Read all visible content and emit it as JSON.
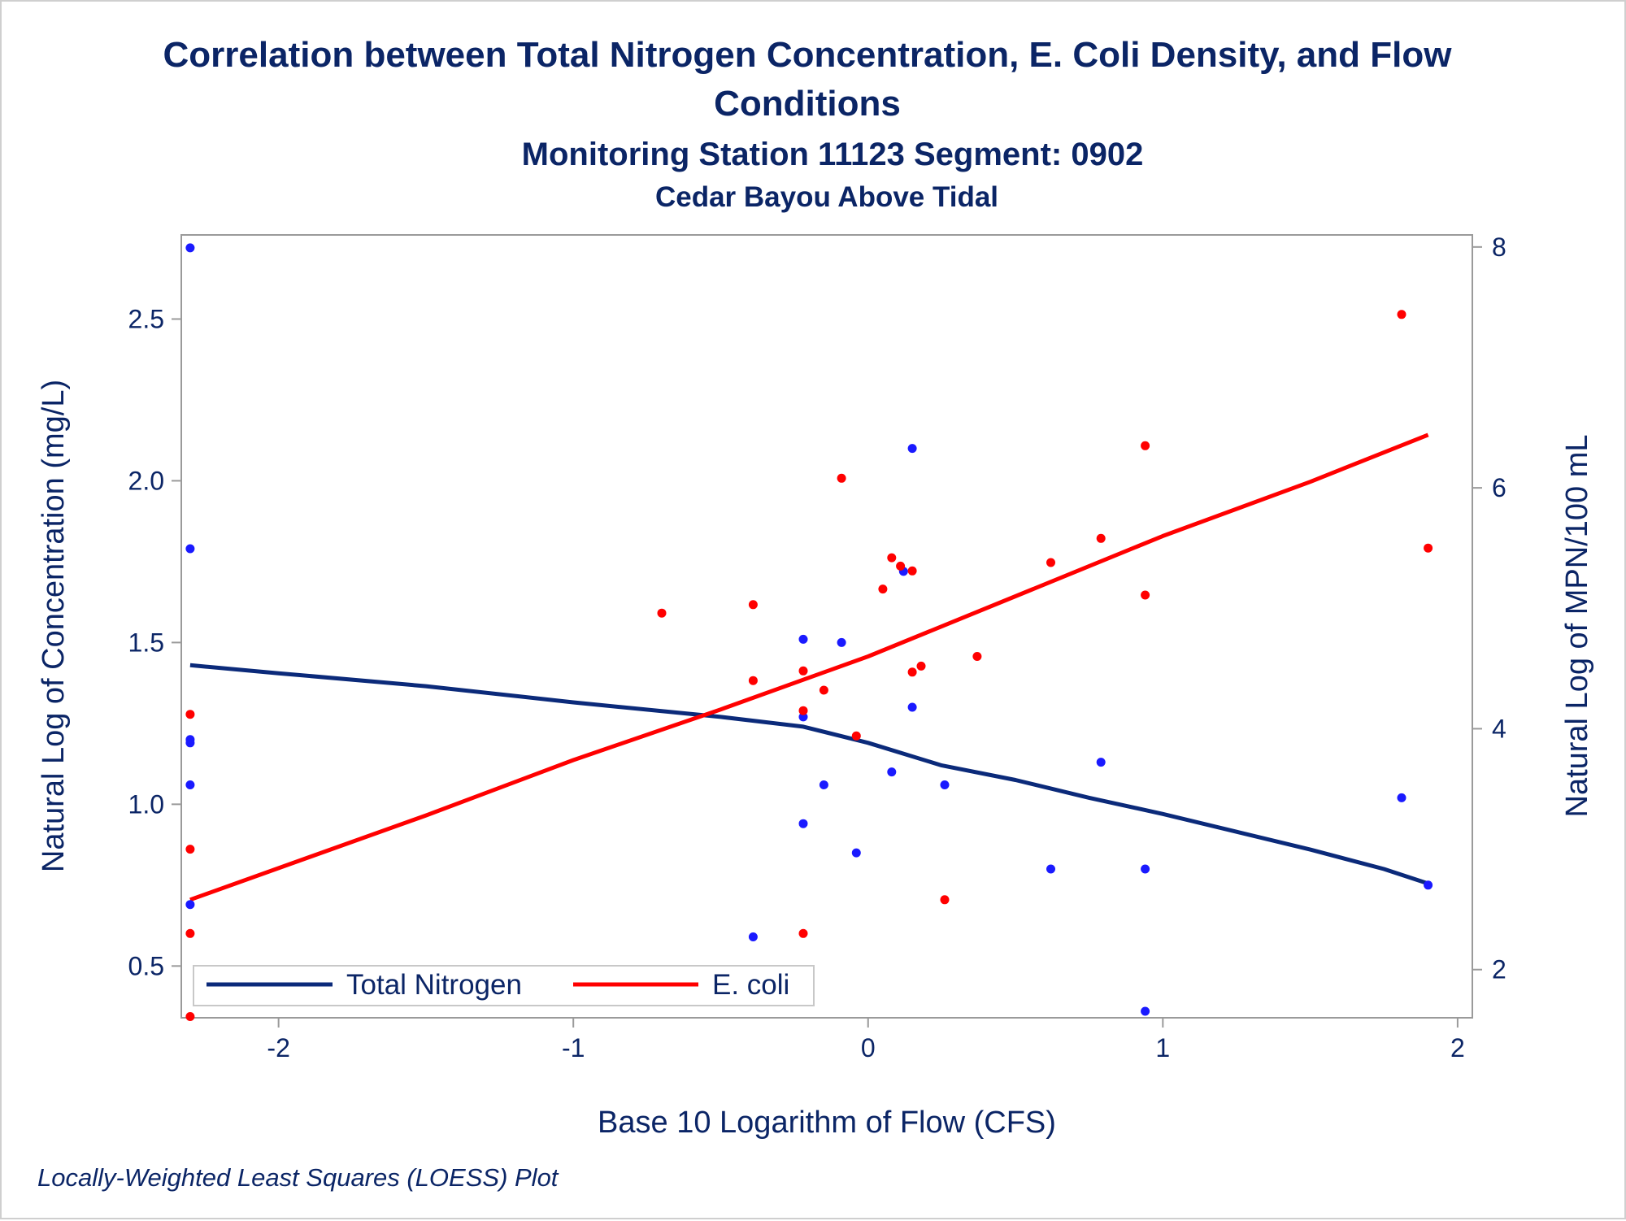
{
  "title": {
    "line1": "Correlation between Total Nitrogen Concentration, E. Coli Density, and Flow",
    "line2": "Conditions",
    "subtitle1": "Monitoring Station 11123 Segment: 0902",
    "subtitle2": "Cedar Bayou Above Tidal"
  },
  "footnote": "Locally-Weighted Least Squares (LOESS) Plot",
  "chart_data": {
    "type": "scatter",
    "xlabel": "Base 10 Logarithm of Flow (CFS)",
    "ylabel": "Natural Log of Concentration (mg/L)",
    "y2label": "Natural Log of MPN/100 mL",
    "xlim": [
      -2.33,
      2.05
    ],
    "ylim": [
      0.34,
      2.76
    ],
    "y2lim": [
      1.6,
      8.1
    ],
    "xticks": [
      "-2",
      "-1",
      "0",
      "1",
      "2"
    ],
    "yticks": [
      "0.5",
      "1.0",
      "1.5",
      "2.0",
      "2.5"
    ],
    "y2ticks": [
      "2",
      "4",
      "6",
      "8"
    ],
    "legend_position": "bottom-left",
    "colors": {
      "nitrogen": "#0b2a7a",
      "ecoli": "#ff0000",
      "text": "#0b2566"
    },
    "series": [
      {
        "name": "Total Nitrogen",
        "axis": "left",
        "color": "#1a1aff",
        "points": [
          [
            -2.3,
            2.72
          ],
          [
            -2.3,
            1.79
          ],
          [
            -2.3,
            1.2
          ],
          [
            -2.3,
            1.19
          ],
          [
            -2.3,
            1.06
          ],
          [
            -2.3,
            0.69
          ],
          [
            -0.39,
            0.59
          ],
          [
            -0.22,
            1.51
          ],
          [
            -0.22,
            1.27
          ],
          [
            -0.22,
            0.94
          ],
          [
            -0.15,
            1.06
          ],
          [
            -0.09,
            1.5
          ],
          [
            -0.04,
            0.85
          ],
          [
            0.08,
            1.1
          ],
          [
            0.12,
            1.72
          ],
          [
            0.15,
            2.1
          ],
          [
            0.15,
            1.3
          ],
          [
            0.26,
            1.06
          ],
          [
            0.62,
            0.8
          ],
          [
            0.79,
            1.13
          ],
          [
            0.94,
            0.8
          ],
          [
            0.94,
            0.36
          ],
          [
            1.81,
            1.02
          ],
          [
            1.9,
            0.75
          ]
        ],
        "fit": [
          [
            -2.3,
            1.43
          ],
          [
            -2.0,
            1.405
          ],
          [
            -1.5,
            1.365
          ],
          [
            -1.0,
            1.315
          ],
          [
            -0.5,
            1.27
          ],
          [
            -0.22,
            1.24
          ],
          [
            0.0,
            1.19
          ],
          [
            0.25,
            1.12
          ],
          [
            0.5,
            1.075
          ],
          [
            0.75,
            1.02
          ],
          [
            1.0,
            0.97
          ],
          [
            1.25,
            0.915
          ],
          [
            1.5,
            0.86
          ],
          [
            1.75,
            0.8
          ],
          [
            1.9,
            0.755
          ]
        ]
      },
      {
        "name": "E. coli",
        "axis": "right",
        "color": "#ff0000",
        "points": [
          [
            -2.3,
            4.12
          ],
          [
            -2.3,
            3.0
          ],
          [
            -2.3,
            2.3
          ],
          [
            -2.3,
            1.61
          ],
          [
            -0.7,
            4.96
          ],
          [
            -0.39,
            5.03
          ],
          [
            -0.39,
            4.4
          ],
          [
            -0.22,
            4.48
          ],
          [
            -0.22,
            4.15
          ],
          [
            -0.22,
            2.3
          ],
          [
            -0.15,
            4.32
          ],
          [
            -0.09,
            6.08
          ],
          [
            -0.04,
            3.94
          ],
          [
            0.05,
            5.16
          ],
          [
            0.08,
            5.42
          ],
          [
            0.11,
            5.35
          ],
          [
            0.15,
            5.31
          ],
          [
            0.15,
            4.47
          ],
          [
            0.18,
            4.52
          ],
          [
            0.26,
            2.58
          ],
          [
            0.37,
            4.6
          ],
          [
            0.62,
            5.38
          ],
          [
            0.79,
            5.58
          ],
          [
            0.94,
            6.35
          ],
          [
            0.94,
            5.11
          ],
          [
            1.81,
            7.44
          ],
          [
            1.9,
            5.5
          ]
        ],
        "fit": [
          [
            -2.3,
            2.58
          ],
          [
            -1.5,
            3.28
          ],
          [
            -1.0,
            3.74
          ],
          [
            -0.5,
            4.16
          ],
          [
            0.0,
            4.6
          ],
          [
            0.5,
            5.1
          ],
          [
            1.0,
            5.6
          ],
          [
            1.5,
            6.05
          ],
          [
            1.9,
            6.44
          ]
        ]
      }
    ]
  }
}
